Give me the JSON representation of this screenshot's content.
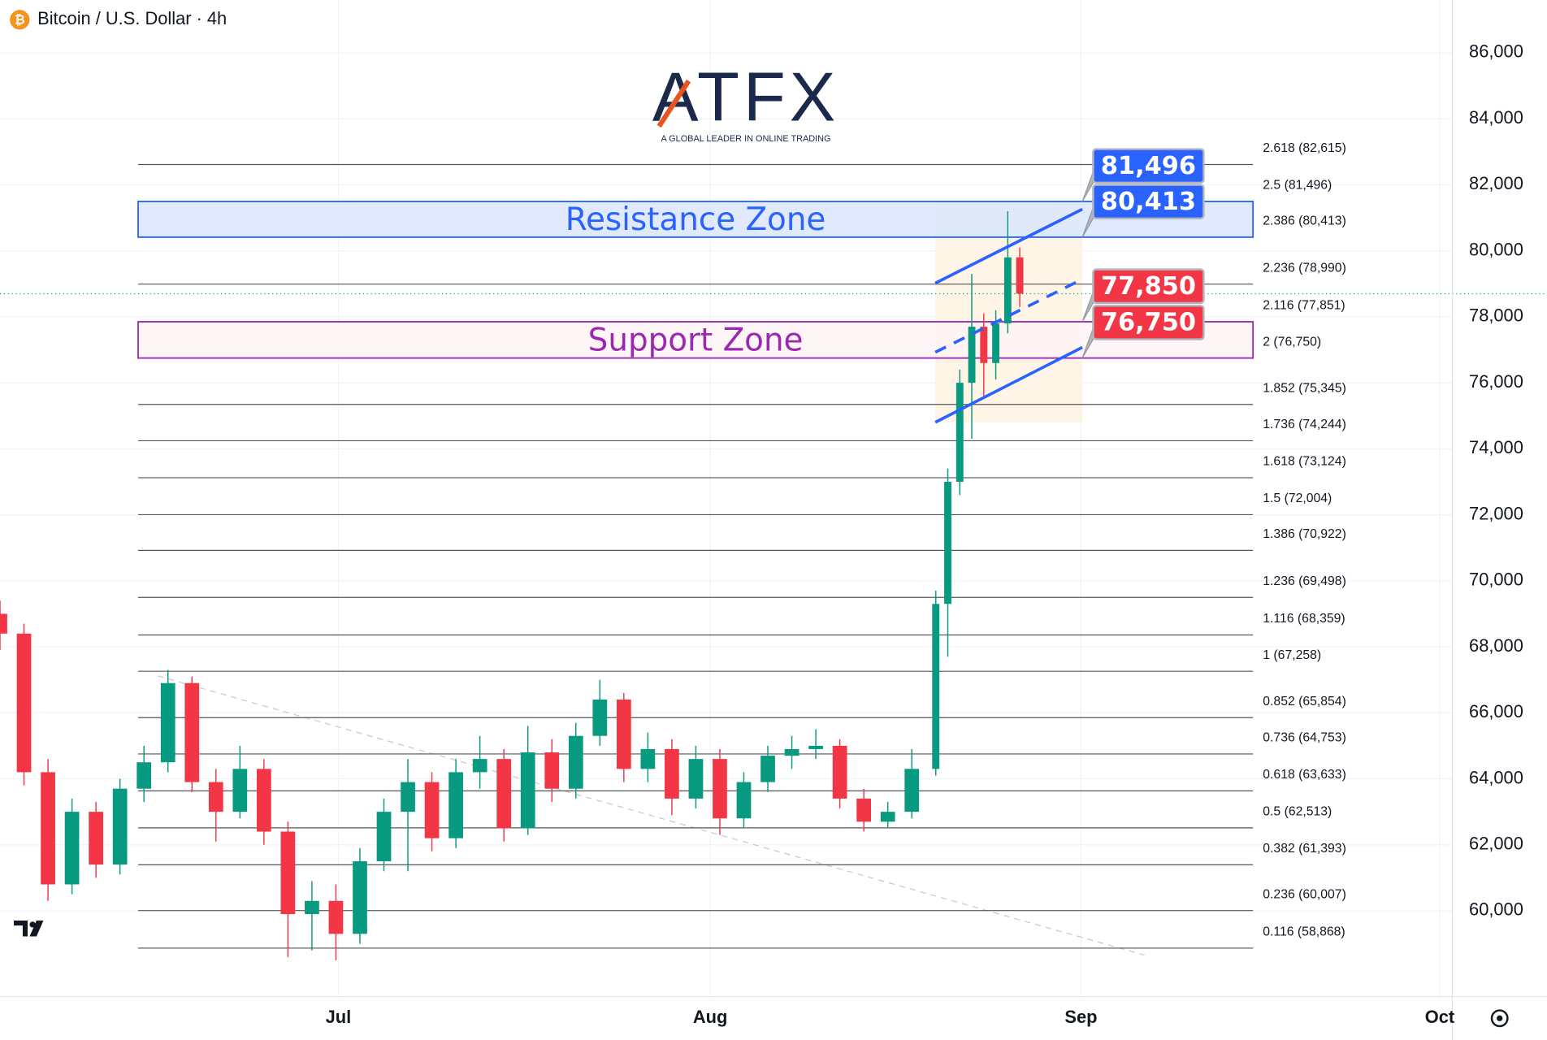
{
  "chart_data": {
    "type": "candlestick",
    "title": "Bitcoin / U.S. Dollar · 4h",
    "brand": {
      "name": "ATFX",
      "tagline": "A GLOBAL LEADER IN ONLINE TRADING"
    },
    "up_color": "#089981",
    "down_color": "#f23645",
    "grid": true,
    "xlim": [
      0,
      121.05
    ],
    "xticks": [
      {
        "value": 28.2,
        "label": "Jul"
      },
      {
        "value": 59.2,
        "label": "Aug"
      },
      {
        "value": 90.1,
        "label": "Sep"
      },
      {
        "value": 120,
        "label": "Oct"
      }
    ],
    "ylim": [
      57400,
      87600
    ],
    "yticks": [
      {
        "value": 60000,
        "label": "60,000"
      },
      {
        "value": 62000,
        "label": "62,000"
      },
      {
        "value": 64000,
        "label": "64,000"
      },
      {
        "value": 66000,
        "label": "66,000"
      },
      {
        "value": 68000,
        "label": "68,000"
      },
      {
        "value": 70000,
        "label": "70,000"
      },
      {
        "value": 72000,
        "label": "72,000"
      },
      {
        "value": 74000,
        "label": "74,000"
      },
      {
        "value": 76000,
        "label": "76,000"
      },
      {
        "value": 78000,
        "label": "78,000"
      },
      {
        "value": 80000,
        "label": "80,000"
      },
      {
        "value": 82000,
        "label": "82,000"
      },
      {
        "value": 84000,
        "label": "84,000"
      },
      {
        "value": 86000,
        "label": "86,000"
      }
    ],
    "candles": [
      {
        "x": 0,
        "o": 69000,
        "h": 69400,
        "l": 67900,
        "c": 68400
      },
      {
        "x": 2,
        "o": 68400,
        "h": 68700,
        "l": 63800,
        "c": 64200
      },
      {
        "x": 4,
        "o": 64200,
        "h": 64600,
        "l": 60300,
        "c": 60800
      },
      {
        "x": 6,
        "o": 60800,
        "h": 63400,
        "l": 60500,
        "c": 63000
      },
      {
        "x": 8,
        "o": 63000,
        "h": 63300,
        "l": 61000,
        "c": 61400
      },
      {
        "x": 10,
        "o": 61400,
        "h": 64000,
        "l": 61100,
        "c": 63700
      },
      {
        "x": 12,
        "o": 63700,
        "h": 65000,
        "l": 63300,
        "c": 64500
      },
      {
        "x": 14,
        "o": 64500,
        "h": 67300,
        "l": 64200,
        "c": 66900
      },
      {
        "x": 16,
        "o": 66900,
        "h": 67100,
        "l": 63600,
        "c": 63900
      },
      {
        "x": 18,
        "o": 63900,
        "h": 64300,
        "l": 62100,
        "c": 63000
      },
      {
        "x": 20,
        "o": 63000,
        "h": 65000,
        "l": 62800,
        "c": 64300
      },
      {
        "x": 22,
        "o": 64300,
        "h": 64600,
        "l": 62000,
        "c": 62400
      },
      {
        "x": 24,
        "o": 62400,
        "h": 62700,
        "l": 58600,
        "c": 59900
      },
      {
        "x": 26,
        "o": 59900,
        "h": 60900,
        "l": 58800,
        "c": 60300
      },
      {
        "x": 28,
        "o": 60300,
        "h": 60800,
        "l": 58500,
        "c": 59300
      },
      {
        "x": 30,
        "o": 59300,
        "h": 61900,
        "l": 59000,
        "c": 61500
      },
      {
        "x": 32,
        "o": 61500,
        "h": 63400,
        "l": 61200,
        "c": 63000
      },
      {
        "x": 34,
        "o": 63000,
        "h": 64600,
        "l": 61200,
        "c": 63900
      },
      {
        "x": 36,
        "o": 63900,
        "h": 64200,
        "l": 61800,
        "c": 62200
      },
      {
        "x": 38,
        "o": 62200,
        "h": 64600,
        "l": 61900,
        "c": 64200
      },
      {
        "x": 40,
        "o": 64200,
        "h": 65300,
        "l": 63700,
        "c": 64600
      },
      {
        "x": 42,
        "o": 64600,
        "h": 64900,
        "l": 62100,
        "c": 62500
      },
      {
        "x": 44,
        "o": 62500,
        "h": 65600,
        "l": 62300,
        "c": 64800
      },
      {
        "x": 46,
        "o": 64800,
        "h": 65200,
        "l": 63300,
        "c": 63700
      },
      {
        "x": 48,
        "o": 63700,
        "h": 65700,
        "l": 63400,
        "c": 65300
      },
      {
        "x": 50,
        "o": 65300,
        "h": 67000,
        "l": 65000,
        "c": 66400
      },
      {
        "x": 52,
        "o": 66400,
        "h": 66600,
        "l": 63900,
        "c": 64300
      },
      {
        "x": 54,
        "o": 64300,
        "h": 65400,
        "l": 63900,
        "c": 64900
      },
      {
        "x": 56,
        "o": 64900,
        "h": 65200,
        "l": 62900,
        "c": 63400
      },
      {
        "x": 58,
        "o": 63400,
        "h": 65000,
        "l": 63100,
        "c": 64600
      },
      {
        "x": 60,
        "o": 64600,
        "h": 64900,
        "l": 62300,
        "c": 62800
      },
      {
        "x": 62,
        "o": 62800,
        "h": 64200,
        "l": 62500,
        "c": 63900
      },
      {
        "x": 64,
        "o": 63900,
        "h": 65000,
        "l": 63600,
        "c": 64700
      },
      {
        "x": 66,
        "o": 64700,
        "h": 65300,
        "l": 64300,
        "c": 64900
      },
      {
        "x": 68,
        "o": 64900,
        "h": 65500,
        "l": 64600,
        "c": 65000
      },
      {
        "x": 70,
        "o": 65000,
        "h": 65200,
        "l": 63100,
        "c": 63400
      },
      {
        "x": 72,
        "o": 63400,
        "h": 63700,
        "l": 62400,
        "c": 62700
      },
      {
        "x": 74,
        "o": 62700,
        "h": 63300,
        "l": 62500,
        "c": 63000
      },
      {
        "x": 76,
        "o": 63000,
        "h": 64900,
        "l": 62800,
        "c": 64300
      },
      {
        "x": 78,
        "o": 64300,
        "h": 69700,
        "l": 64100,
        "c": 69300
      },
      {
        "x": 79,
        "o": 69300,
        "h": 73400,
        "l": 67700,
        "c": 73000
      },
      {
        "x": 80,
        "o": 73000,
        "h": 76400,
        "l": 72600,
        "c": 76000
      },
      {
        "x": 81,
        "o": 76000,
        "h": 79300,
        "l": 74300,
        "c": 77700
      },
      {
        "x": 82,
        "o": 77700,
        "h": 78100,
        "l": 75600,
        "c": 76600
      },
      {
        "x": 83,
        "o": 76600,
        "h": 78200,
        "l": 76100,
        "c": 77800
      },
      {
        "x": 84,
        "o": 77800,
        "h": 81200,
        "l": 77500,
        "c": 79800
      },
      {
        "x": 85,
        "o": 79800,
        "h": 80100,
        "l": 78300,
        "c": 78700
      }
    ],
    "levels": [
      {
        "label": "2.618 (82,615)",
        "value": 82615
      },
      {
        "label": "2.5 (81,496)",
        "value": 81496
      },
      {
        "label": "2.386 (80,413)",
        "value": 80413
      },
      {
        "label": "2.236 (78,990)",
        "value": 78990
      },
      {
        "label": "2.116 (77,851)",
        "value": 77851
      },
      {
        "label": "2 (76,750)",
        "value": 76750
      },
      {
        "label": "1.852 (75,345)",
        "value": 75345
      },
      {
        "label": "1.736 (74,244)",
        "value": 74244
      },
      {
        "label": "1.618 (73,124)",
        "value": 73124
      },
      {
        "label": "1.5 (72,004)",
        "value": 72004
      },
      {
        "label": "1.386 (70,922)",
        "value": 70922
      },
      {
        "label": "1.236 (69,498)",
        "value": 69498
      },
      {
        "label": "1.116 (68,359)",
        "value": 68359
      },
      {
        "label": "1 (67,258)",
        "value": 67258
      },
      {
        "label": "0.852 (65,854)",
        "value": 65854
      },
      {
        "label": "0.736 (64,753)",
        "value": 64753
      },
      {
        "label": "0.618 (63,633)",
        "value": 63633
      },
      {
        "label": "0.5 (62,513)",
        "value": 62513
      },
      {
        "label": "0.382 (61,393)",
        "value": 61393
      },
      {
        "label": "0.236 (60,007)",
        "value": 60007
      },
      {
        "label": "0.116 (58,868)",
        "value": 58868
      }
    ],
    "zones": [
      {
        "label": "Resistance Zone",
        "from": 80413,
        "to": 81496,
        "color": "#2962ff",
        "fill": "#dbe6fb"
      },
      {
        "label": "Support Zone",
        "from": 76750,
        "to": 77850,
        "color": "#9c27b0",
        "fill": "#fdf3f5"
      }
    ],
    "price_tags": [
      {
        "value": 81496,
        "label": "81,496",
        "color": "#2962ff"
      },
      {
        "value": 80413,
        "label": "80,413",
        "color": "#2962ff"
      },
      {
        "value": 77850,
        "label": "77,850",
        "color": "#f23645"
      },
      {
        "value": 76750,
        "label": "76,750",
        "color": "#f23645"
      }
    ]
  }
}
